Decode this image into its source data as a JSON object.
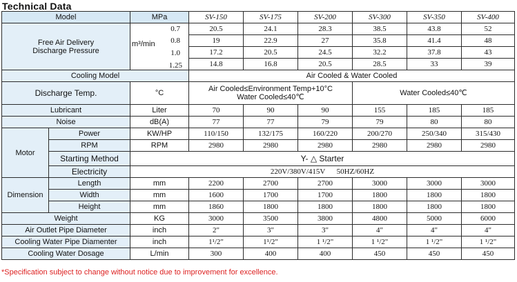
{
  "title": "Technical Data",
  "header": {
    "label": "Model",
    "unit": "MPa",
    "models": [
      "SV-150",
      "SV-175",
      "SV-200",
      "SV-300",
      "SV-350",
      "SV-400"
    ]
  },
  "fad": {
    "label_line1": "Free Air Delivery",
    "label_line2": "Discharge Pressure",
    "unit": "m³/min",
    "rows": [
      {
        "pressure": "0.7",
        "values": [
          "20.5",
          "24.1",
          "28.3",
          "38.5",
          "43.8",
          "52"
        ]
      },
      {
        "pressure": "0.8",
        "values": [
          "19",
          "22.9",
          "27",
          "35.8",
          "41.4",
          "48"
        ]
      },
      {
        "pressure": "1.0",
        "values": [
          "17.2",
          "20.5",
          "24.5",
          "32.2",
          "37.8",
          "43"
        ]
      },
      {
        "pressure": "1.25",
        "values": [
          "14.8",
          "16.8",
          "20.5",
          "28.5",
          "33",
          "39"
        ]
      }
    ]
  },
  "cooling_model": {
    "label": "Cooling Model",
    "value": "Air Cooled & Water Cooled"
  },
  "discharge_temp": {
    "label": "Discharge Temp.",
    "unit": "°C",
    "air_line1": "Air Cooled≤Environment Temp+10°C",
    "air_line2": "Water Cooled≤40℃",
    "water": "Water Cooled≤40℃"
  },
  "lubricant": {
    "label": "Lubricant",
    "unit": "Liter",
    "values": [
      "70",
      "90",
      "90",
      "155",
      "185",
      "185"
    ]
  },
  "noise": {
    "label": "Noise",
    "unit": "dB(A)",
    "values": [
      "77",
      "77",
      "79",
      "79",
      "80",
      "80"
    ]
  },
  "motor": {
    "label": "Motor",
    "power": {
      "label": "Power",
      "unit": "KW/HP",
      "values": [
        "110/150",
        "132/175",
        "160/220",
        "200/270",
        "250/340",
        "315/430"
      ]
    },
    "rpm": {
      "label": "RPM",
      "unit": "RPM",
      "values": [
        "2980",
        "2980",
        "2980",
        "2980",
        "2980",
        "2980"
      ]
    }
  },
  "starting_method": {
    "label": "Starting Method",
    "value": "Y- △ Starter"
  },
  "electricity": {
    "label": "Electricity",
    "value": "220V/380V/415V      50HZ/60HZ"
  },
  "dimension": {
    "label": "Dimension",
    "length": {
      "label": "Length",
      "unit": "mm",
      "values": [
        "2200",
        "2700",
        "2700",
        "3000",
        "3000",
        "3000"
      ]
    },
    "width": {
      "label": "Width",
      "unit": "mm",
      "values": [
        "1600",
        "1700",
        "1700",
        "1800",
        "1800",
        "1800"
      ]
    },
    "height": {
      "label": "Height",
      "unit": "mm",
      "values": [
        "1860",
        "1800",
        "1800",
        "1800",
        "1800",
        "1800"
      ]
    }
  },
  "weight": {
    "label": "Weight",
    "unit": "KG",
    "values": [
      "3000",
      "3500",
      "3800",
      "4800",
      "5000",
      "6000"
    ]
  },
  "air_outlet": {
    "label": "Air Outlet Pipe Diameter",
    "unit": "inch",
    "values": [
      "2\"",
      "3\"",
      "3\"",
      "4\"",
      "4\"",
      "4\""
    ]
  },
  "cooling_pipe": {
    "label": "Cooling Water Pipe Diamenter",
    "unit": "inch",
    "values": [
      "1¹/2\"",
      "1¹/2\"",
      "1 ¹/2\"",
      "1 ¹/2\"",
      "1 ¹/2\"",
      "1 ¹/2\""
    ]
  },
  "cooling_dosage": {
    "label": "Cooling Water Dosage",
    "unit": "L/min",
    "values": [
      "300",
      "400",
      "400",
      "450",
      "450",
      "450"
    ]
  },
  "footnote": {
    "star": "*",
    "text": "Specification subject to change without notice due to improvement for excellence."
  },
  "colors": {
    "label_bg": "#e3eff8",
    "footnote": "#dd2222"
  }
}
